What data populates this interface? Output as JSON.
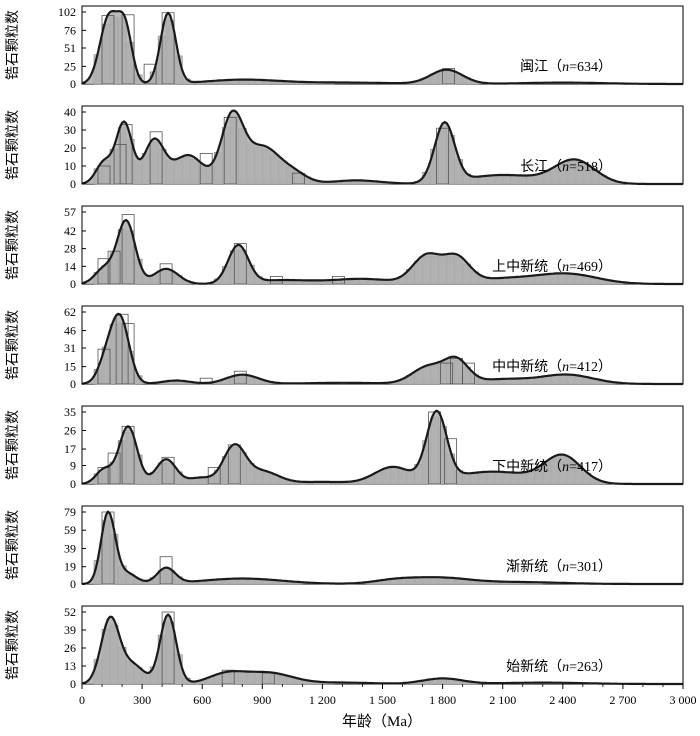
{
  "chart_data": {
    "type": "area",
    "xlabel": "年龄（Ma）",
    "xlim": [
      0,
      3000
    ],
    "xticks": [
      0,
      300,
      600,
      900,
      1200,
      1500,
      1800,
      2100,
      2400,
      2700,
      3000
    ],
    "xtick_labels": [
      "0",
      "300",
      "600",
      "900",
      "1 200",
      "1 500",
      "1 800",
      "2 100",
      "2 400",
      "2 700",
      "3 000"
    ],
    "ylabel": "锆石颗粒数",
    "colors": {
      "fill": "#aeaeae",
      "line": "#1a1a1a",
      "bar_edge": "#6e6e6e"
    },
    "panels": [
      {
        "label_cn": "闽江（",
        "n_text": "n",
        "n_value": "=634）",
        "yticks": [
          0,
          25,
          51,
          76,
          102
        ],
        "ylim": [
          0,
          102
        ],
        "peaks": [
          [
            135,
            95,
            45
          ],
          [
            215,
            75,
            35
          ],
          [
            430,
            100,
            38
          ],
          [
            800,
            6,
            180
          ],
          [
            1820,
            20,
            80
          ],
          [
            1300,
            2,
            250
          ],
          [
            2400,
            2,
            200
          ]
        ],
        "bins": [
          [
            130,
            97
          ],
          [
            230,
            98
          ],
          [
            340,
            28
          ],
          [
            430,
            101
          ],
          [
            1830,
            22
          ]
        ]
      },
      {
        "label_cn": "长江（",
        "n_text": "n",
        "n_value": "=518）",
        "yticks": [
          0,
          10,
          20,
          30,
          40
        ],
        "ylim": [
          0,
          40
        ],
        "peaks": [
          [
            110,
            12,
            40
          ],
          [
            210,
            34,
            40
          ],
          [
            360,
            24,
            50
          ],
          [
            530,
            16,
            75
          ],
          [
            750,
            37,
            55
          ],
          [
            900,
            20,
            80
          ],
          [
            1050,
            6,
            70
          ],
          [
            1370,
            2,
            120
          ],
          [
            1810,
            33,
            50
          ],
          [
            2100,
            5,
            180
          ],
          [
            2460,
            13,
            100
          ]
        ],
        "bins": [
          [
            110,
            10
          ],
          [
            190,
            22
          ],
          [
            220,
            33
          ],
          [
            370,
            29
          ],
          [
            620,
            17
          ],
          [
            740,
            37
          ],
          [
            1080,
            6
          ],
          [
            1800,
            31
          ]
        ]
      },
      {
        "label_cn": "上中新统（",
        "n_text": "n",
        "n_value": "=469）",
        "yticks": [
          0,
          14,
          28,
          42,
          57
        ],
        "ylim": [
          0,
          57
        ],
        "peaks": [
          [
            110,
            12,
            45
          ],
          [
            220,
            50,
            45
          ],
          [
            420,
            12,
            60
          ],
          [
            780,
            30,
            50
          ],
          [
            1000,
            3,
            150
          ],
          [
            1400,
            4,
            150
          ],
          [
            1720,
            22,
            70
          ],
          [
            1870,
            20,
            65
          ],
          [
            2100,
            4,
            150
          ],
          [
            2420,
            8,
            150
          ]
        ],
        "bins": [
          [
            110,
            20
          ],
          [
            160,
            26
          ],
          [
            230,
            55
          ],
          [
            420,
            16
          ],
          [
            790,
            32
          ],
          [
            970,
            6
          ],
          [
            1280,
            6
          ]
        ]
      },
      {
        "label_cn": "中中新统（",
        "n_text": "n",
        "n_value": "=412）",
        "yticks": [
          0,
          15,
          31,
          46,
          62
        ],
        "ylim": [
          0,
          62
        ],
        "peaks": [
          [
            120,
            18,
            40
          ],
          [
            190,
            56,
            45
          ],
          [
            470,
            3,
            70
          ],
          [
            800,
            8,
            80
          ],
          [
            1300,
            1,
            200
          ],
          [
            1730,
            15,
            80
          ],
          [
            1870,
            19,
            60
          ],
          [
            2100,
            4,
            130
          ],
          [
            2420,
            8,
            130
          ]
        ],
        "bins": [
          [
            110,
            30
          ],
          [
            200,
            60
          ],
          [
            230,
            52
          ],
          [
            620,
            5
          ],
          [
            790,
            11
          ],
          [
            1820,
            18
          ],
          [
            1870,
            22
          ],
          [
            1930,
            18
          ]
        ]
      },
      {
        "label_cn": "下中新统（",
        "n_text": "n",
        "n_value": "=417）",
        "yticks": [
          0,
          9,
          17,
          26,
          35
        ],
        "ylim": [
          0,
          35
        ],
        "peaks": [
          [
            110,
            7,
            40
          ],
          [
            230,
            28,
            45
          ],
          [
            420,
            12,
            50
          ],
          [
            590,
            3,
            60
          ],
          [
            760,
            18,
            55
          ],
          [
            900,
            6,
            80
          ],
          [
            1200,
            1,
            150
          ],
          [
            1550,
            8,
            90
          ],
          [
            1770,
            33,
            50
          ],
          [
            2050,
            6,
            200
          ],
          [
            2400,
            13,
            90
          ]
        ],
        "bins": [
          [
            110,
            8
          ],
          [
            160,
            15
          ],
          [
            230,
            28
          ],
          [
            430,
            13
          ],
          [
            660,
            8
          ],
          [
            760,
            19
          ],
          [
            1760,
            35
          ],
          [
            1840,
            22
          ]
        ]
      },
      {
        "label_cn": "渐新统（",
        "n_text": "n",
        "n_value": "=301）",
        "yticks": [
          0,
          19,
          39,
          59,
          79
        ],
        "ylim": [
          0,
          79
        ],
        "peaks": [
          [
            130,
            77,
            35
          ],
          [
            220,
            12,
            50
          ],
          [
            420,
            17,
            45
          ],
          [
            800,
            6,
            200
          ],
          [
            1550,
            3,
            100
          ],
          [
            1770,
            7,
            160
          ],
          [
            2200,
            2,
            200
          ]
        ],
        "bins": [
          [
            130,
            79
          ],
          [
            420,
            30
          ]
        ]
      },
      {
        "label_cn": "始新统（",
        "n_text": "n",
        "n_value": "=263）",
        "yticks": [
          0,
          13,
          26,
          39,
          52
        ],
        "ylim": [
          0,
          52
        ],
        "peaks": [
          [
            140,
            46,
            45
          ],
          [
            250,
            14,
            60
          ],
          [
            430,
            50,
            40
          ],
          [
            720,
            7,
            90
          ],
          [
            930,
            8,
            120
          ],
          [
            1300,
            1,
            150
          ],
          [
            1800,
            4,
            100
          ],
          [
            2300,
            1,
            200
          ]
        ],
        "bins": [
          [
            430,
            52
          ],
          [
            730,
            10
          ],
          [
            930,
            8
          ]
        ]
      }
    ]
  }
}
